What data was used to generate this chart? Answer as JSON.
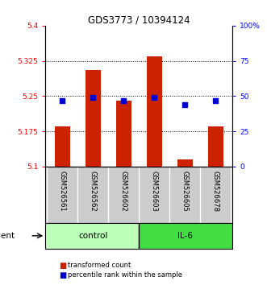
{
  "title": "GDS3773 / 10394124",
  "samples": [
    "GSM526561",
    "GSM526562",
    "GSM526602",
    "GSM526603",
    "GSM526605",
    "GSM526678"
  ],
  "red_values": [
    5.185,
    5.305,
    5.24,
    5.335,
    5.115,
    5.185
  ],
  "blue_values": [
    47,
    49,
    47,
    49,
    44,
    47
  ],
  "ylim_left": [
    5.1,
    5.4
  ],
  "ylim_right": [
    0,
    100
  ],
  "yticks_left": [
    5.1,
    5.175,
    5.25,
    5.325,
    5.4
  ],
  "yticks_right": [
    0,
    25,
    50,
    75,
    100
  ],
  "ytick_labels_left": [
    "5.1",
    "5.175",
    "5.25",
    "5.325",
    "5.4"
  ],
  "ytick_labels_right": [
    "0",
    "25",
    "50",
    "75",
    "100%"
  ],
  "grid_values": [
    5.175,
    5.25,
    5.325
  ],
  "bar_color": "#cc2200",
  "dot_color": "#0000cc",
  "bar_bottom": 5.1,
  "control_color": "#bbffbb",
  "il6_color": "#44dd44",
  "label_bar": "transformed count",
  "label_dot": "percentile rank within the sample",
  "xlabel_bg": "#cccccc"
}
